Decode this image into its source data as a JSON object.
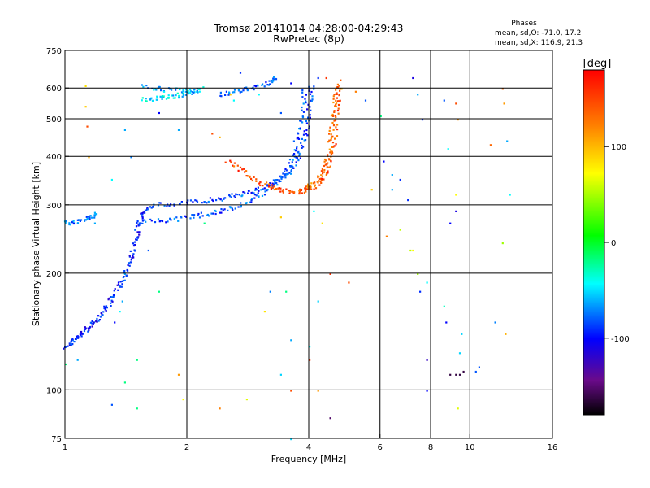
{
  "chart_data": {
    "type": "scatter",
    "title": "Tromsø 20141014 04:28:00-04:29:43",
    "subtitle": "RwPretec (8p)",
    "xlabel": "Frequency [MHz]",
    "ylabel": "Stationary phase Virtual Height [km]",
    "x_scale": "log",
    "y_scale": "log",
    "xlim": [
      1,
      16
    ],
    "ylim": [
      75,
      750
    ],
    "x_ticks": [
      1,
      2,
      4,
      6,
      8,
      10,
      16
    ],
    "y_ticks": [
      75,
      100,
      200,
      300,
      400,
      500,
      600,
      750
    ],
    "x_grid": [
      2,
      4,
      6,
      8,
      10
    ],
    "y_grid": [
      100,
      200,
      300,
      400,
      500,
      600
    ],
    "grid": true,
    "stats": {
      "header": "Phases",
      "line_o": "mean, sd,O: -71.0, 17.2",
      "line_x": "mean, sd,X: 116.9, 21.3"
    },
    "colorbar": {
      "label": "[deg]",
      "range": [
        -180,
        180
      ],
      "ticks": [
        100,
        0,
        -100
      ],
      "placement": "right"
    },
    "traces": [
      {
        "name": "",
        "phase": -95,
        "points": [
          [
            1.0,
            130
          ],
          [
            1.03,
            133
          ],
          [
            1.07,
            137
          ],
          [
            1.1,
            141
          ],
          [
            1.14,
            146
          ],
          [
            1.18,
            151
          ],
          [
            1.22,
            157
          ],
          [
            1.26,
            164
          ],
          [
            1.3,
            172
          ],
          [
            1.34,
            182
          ],
          [
            1.38,
            193
          ],
          [
            1.42,
            207
          ],
          [
            1.45,
            222
          ],
          [
            1.48,
            240
          ],
          [
            1.5,
            258
          ],
          [
            1.53,
            276
          ],
          [
            1.57,
            291
          ],
          [
            1.62,
            300
          ]
        ]
      },
      {
        "name": "",
        "phase": -85,
        "points": [
          [
            1.62,
            300
          ],
          [
            1.8,
            302
          ],
          [
            2.0,
            305
          ],
          [
            2.2,
            309
          ],
          [
            2.4,
            313
          ],
          [
            2.6,
            318
          ],
          [
            2.8,
            324
          ],
          [
            3.0,
            331
          ],
          [
            3.2,
            340
          ],
          [
            3.4,
            351
          ],
          [
            3.55,
            365
          ],
          [
            3.7,
            385
          ],
          [
            3.8,
            410
          ],
          [
            3.9,
            450
          ],
          [
            3.97,
            500
          ],
          [
            4.02,
            560
          ],
          [
            4.05,
            620
          ]
        ]
      },
      {
        "name": "",
        "phase": -80,
        "points": [
          [
            1.5,
            270
          ],
          [
            1.7,
            274
          ],
          [
            1.9,
            278
          ],
          [
            2.1,
            282
          ],
          [
            2.3,
            287
          ],
          [
            2.5,
            293
          ],
          [
            2.7,
            301
          ],
          [
            2.9,
            312
          ],
          [
            3.1,
            325
          ],
          [
            3.3,
            340
          ],
          [
            3.45,
            360
          ],
          [
            3.6,
            390
          ],
          [
            3.7,
            430
          ],
          [
            3.78,
            480
          ],
          [
            3.85,
            540
          ],
          [
            3.9,
            600
          ]
        ]
      },
      {
        "name": "",
        "phase": -50,
        "points": [
          [
            1.55,
            560
          ],
          [
            1.65,
            565
          ],
          [
            1.75,
            570
          ],
          [
            1.85,
            575
          ],
          [
            1.95,
            580
          ],
          [
            2.05,
            590
          ],
          [
            2.2,
            600
          ]
        ]
      },
      {
        "name": "",
        "phase": -60,
        "points": [
          [
            1.55,
            610
          ],
          [
            1.7,
            600
          ],
          [
            1.85,
            595
          ],
          [
            2.0,
            590
          ],
          [
            2.15,
            588
          ]
        ]
      },
      {
        "name": "",
        "phase": -80,
        "points": [
          [
            2.4,
            580
          ],
          [
            2.6,
            590
          ],
          [
            2.8,
            600
          ],
          [
            3.0,
            612
          ],
          [
            3.2,
            625
          ],
          [
            3.35,
            640
          ]
        ]
      },
      {
        "name": "",
        "phase": 150,
        "points": [
          [
            2.5,
            390
          ],
          [
            2.7,
            370
          ],
          [
            2.9,
            352
          ],
          [
            3.1,
            340
          ],
          [
            3.3,
            332
          ],
          [
            3.5,
            328
          ],
          [
            3.7,
            326
          ],
          [
            3.9,
            328
          ],
          [
            4.1,
            335
          ],
          [
            4.3,
            350
          ],
          [
            4.45,
            375
          ],
          [
            4.55,
            410
          ],
          [
            4.62,
            460
          ],
          [
            4.68,
            520
          ],
          [
            4.72,
            580
          ],
          [
            4.75,
            630
          ]
        ]
      },
      {
        "name": "",
        "phase": 135,
        "points": [
          [
            3.8,
            330
          ],
          [
            4.0,
            336
          ],
          [
            4.2,
            348
          ],
          [
            4.35,
            370
          ],
          [
            4.45,
            400
          ],
          [
            4.52,
            450
          ],
          [
            4.58,
            510
          ],
          [
            4.62,
            570
          ],
          [
            4.65,
            620
          ]
        ]
      },
      {
        "name": "",
        "phase": -75,
        "points": [
          [
            1.0,
            270
          ],
          [
            1.05,
            272
          ],
          [
            1.1,
            276
          ],
          [
            1.15,
            282
          ],
          [
            1.2,
            285
          ]
        ]
      }
    ],
    "scatter": [
      [
        1.12,
        610,
        90
      ],
      [
        1.12,
        540,
        100
      ],
      [
        1.13,
        480,
        150
      ],
      [
        1.14,
        400,
        110
      ],
      [
        1.3,
        350,
        -40
      ],
      [
        1.4,
        470,
        -60
      ],
      [
        1.45,
        400,
        -70
      ],
      [
        1.7,
        520,
        -100
      ],
      [
        1.9,
        470,
        -60
      ],
      [
        2.3,
        460,
        150
      ],
      [
        2.4,
        450,
        110
      ],
      [
        2.55,
        580,
        100
      ],
      [
        2.6,
        560,
        -40
      ],
      [
        2.7,
        660,
        -90
      ],
      [
        3.0,
        580,
        -40
      ],
      [
        3.4,
        520,
        -80
      ],
      [
        3.6,
        620,
        -100
      ],
      [
        4.0,
        600,
        -90
      ],
      [
        4.2,
        640,
        -90
      ],
      [
        4.4,
        640,
        160
      ],
      [
        4.8,
        600,
        100
      ],
      [
        5.2,
        590,
        130
      ],
      [
        5.5,
        560,
        -80
      ],
      [
        6.0,
        510,
        -20
      ],
      [
        6.1,
        390,
        -100
      ],
      [
        6.4,
        330,
        -60
      ],
      [
        6.7,
        350,
        -90
      ],
      [
        7.0,
        310,
        -90
      ],
      [
        7.2,
        640,
        -110
      ],
      [
        7.4,
        580,
        -60
      ],
      [
        7.6,
        500,
        -90
      ],
      [
        8.6,
        560,
        -80
      ],
      [
        9.2,
        550,
        150
      ],
      [
        9.3,
        500,
        120
      ],
      [
        8.8,
        420,
        -40
      ],
      [
        12.0,
        600,
        140
      ],
      [
        12.1,
        550,
        120
      ],
      [
        12.3,
        440,
        -60
      ],
      [
        11.2,
        430,
        140
      ],
      [
        9.2,
        320,
        80
      ],
      [
        12.5,
        320,
        -40
      ],
      [
        12.0,
        240,
        50
      ],
      [
        9.2,
        290,
        -110
      ],
      [
        8.9,
        270,
        -100
      ],
      [
        4.1,
        290,
        -40
      ],
      [
        4.3,
        270,
        90
      ],
      [
        3.4,
        280,
        100
      ],
      [
        1.4,
        200,
        -60
      ],
      [
        1.35,
        190,
        -100
      ],
      [
        1.38,
        170,
        -60
      ],
      [
        1.36,
        160,
        -40
      ],
      [
        1.32,
        150,
        -100
      ],
      [
        1.0,
        117,
        -20
      ],
      [
        1.07,
        120,
        -60
      ],
      [
        3.2,
        180,
        -70
      ],
      [
        3.5,
        180,
        -20
      ],
      [
        4.2,
        170,
        -50
      ],
      [
        4.0,
        130,
        -40
      ],
      [
        3.6,
        135,
        -60
      ],
      [
        3.1,
        160,
        90
      ],
      [
        4.5,
        200,
        160
      ],
      [
        5.0,
        190,
        150
      ],
      [
        4.0,
        120,
        160
      ],
      [
        3.4,
        110,
        -50
      ],
      [
        3.6,
        100,
        150
      ],
      [
        4.2,
        100,
        120
      ],
      [
        4.5,
        85,
        -150
      ],
      [
        2.8,
        95,
        70
      ],
      [
        2.4,
        90,
        130
      ],
      [
        1.9,
        110,
        120
      ],
      [
        1.95,
        95,
        80
      ],
      [
        1.5,
        90,
        -20
      ],
      [
        1.4,
        105,
        -20
      ],
      [
        1.3,
        92,
        -80
      ],
      [
        1.5,
        120,
        -20
      ],
      [
        6.4,
        360,
        -60
      ],
      [
        5.7,
        330,
        100
      ],
      [
        6.2,
        250,
        130
      ],
      [
        6.7,
        260,
        60
      ],
      [
        7.5,
        180,
        -90
      ],
      [
        7.8,
        190,
        -40
      ],
      [
        8.6,
        165,
        -30
      ],
      [
        8.7,
        150,
        -100
      ],
      [
        9.5,
        140,
        -50
      ],
      [
        9.4,
        125,
        -50
      ],
      [
        10.5,
        115,
        -80
      ],
      [
        11.5,
        150,
        -70
      ],
      [
        12.2,
        140,
        110
      ],
      [
        7.8,
        100,
        -100
      ],
      [
        7.8,
        120,
        -120
      ],
      [
        7.4,
        200,
        50
      ],
      [
        9.3,
        90,
        70
      ],
      [
        8.9,
        110,
        -160
      ],
      [
        9.2,
        110,
        -160
      ],
      [
        9.4,
        110,
        -160
      ],
      [
        9.6,
        112,
        -160
      ],
      [
        10.3,
        112,
        -80
      ],
      [
        7.1,
        230,
        60
      ],
      [
        7.2,
        230,
        80
      ],
      [
        3.6,
        75,
        -50
      ],
      [
        2.2,
        270,
        -20
      ],
      [
        1.18,
        270,
        -60
      ],
      [
        1.6,
        230,
        -80
      ],
      [
        1.7,
        180,
        -20
      ]
    ]
  }
}
